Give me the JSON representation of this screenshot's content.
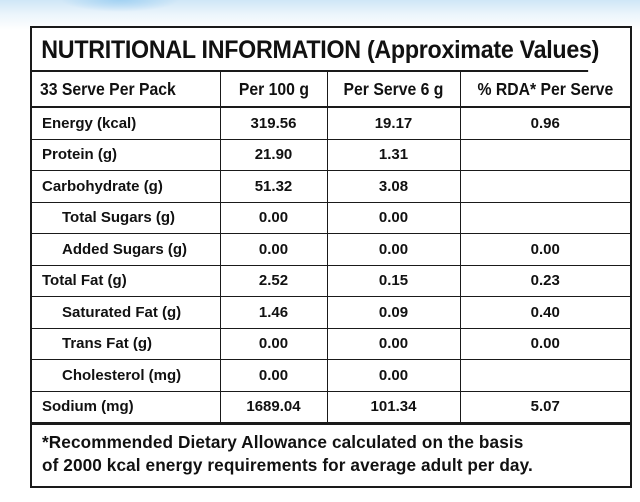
{
  "title": "NUTRITIONAL INFORMATION (Approximate Values)",
  "headers": [
    "33 Serve Per Pack",
    "Per 100 g",
    "Per Serve 6 g",
    "% RDA* Per Serve"
  ],
  "rows": [
    {
      "name": "Energy (kcal)",
      "per100": "319.56",
      "perServe": "19.17",
      "rda": "0.96",
      "indent": false
    },
    {
      "name": "Protein (g)",
      "per100": "21.90",
      "perServe": "1.31",
      "rda": "",
      "indent": false
    },
    {
      "name": "Carbohydrate (g)",
      "per100": "51.32",
      "perServe": "3.08",
      "rda": "",
      "indent": false
    },
    {
      "name": "Total Sugars (g)",
      "per100": "0.00",
      "perServe": "0.00",
      "rda": "",
      "indent": true
    },
    {
      "name": "Added Sugars (g)",
      "per100": "0.00",
      "perServe": "0.00",
      "rda": "0.00",
      "indent": true
    },
    {
      "name": "Total Fat (g)",
      "per100": "2.52",
      "perServe": "0.15",
      "rda": "0.23",
      "indent": false
    },
    {
      "name": "Saturated Fat (g)",
      "per100": "1.46",
      "perServe": "0.09",
      "rda": "0.40",
      "indent": true
    },
    {
      "name": "Trans Fat (g)",
      "per100": "0.00",
      "perServe": "0.00",
      "rda": "0.00",
      "indent": true
    },
    {
      "name": "Cholesterol (mg)",
      "per100": "0.00",
      "perServe": "0.00",
      "rda": "",
      "indent": true
    },
    {
      "name": "Sodium (mg)",
      "per100": "1689.04",
      "perServe": "101.34",
      "rda": "5.07",
      "indent": false
    }
  ],
  "footnote": {
    "line1": "*Recommended Dietary Allowance calculated on the basis",
    "line2": "of 2000 kcal energy requirements for average adult per day."
  }
}
